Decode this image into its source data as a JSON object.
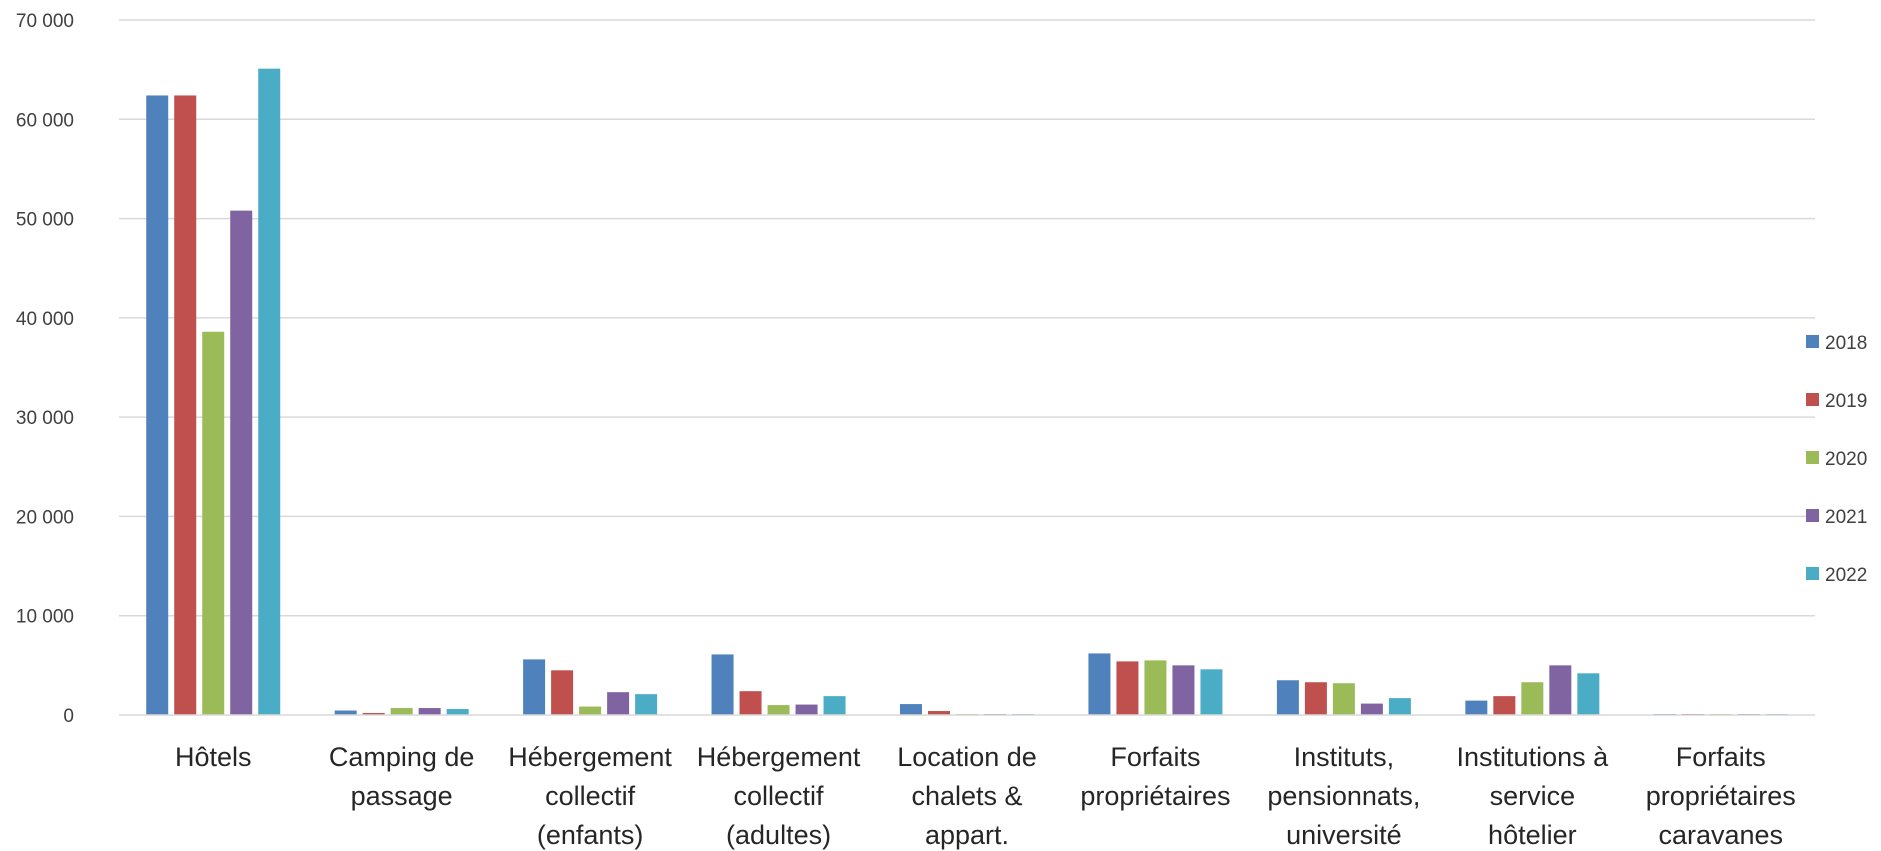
{
  "chart_data": {
    "type": "bar",
    "categories": [
      [
        "Hôtels"
      ],
      [
        "Camping de",
        "passage"
      ],
      [
        "Hébergement",
        "collectif",
        "(enfants)"
      ],
      [
        "Hébergement",
        "collectif",
        "(adultes)"
      ],
      [
        "Location de",
        "chalets &",
        "appart."
      ],
      [
        "Forfaits",
        "propriétaires"
      ],
      [
        "Instituts,",
        "pensionnats,",
        "université"
      ],
      [
        "Institutions à",
        "service",
        "hôtelier"
      ],
      [
        "Forfaits",
        "propriétaires",
        "caravanes"
      ]
    ],
    "series": [
      {
        "name": "2018",
        "color": "#4F81BD",
        "values": [
          62400,
          450,
          5600,
          6100,
          1100,
          6200,
          3500,
          1450,
          80
        ]
      },
      {
        "name": "2019",
        "color": "#C0504D",
        "values": [
          62400,
          200,
          4500,
          2400,
          400,
          5400,
          3300,
          1900,
          80
        ]
      },
      {
        "name": "2020",
        "color": "#9BBB59",
        "values": [
          38600,
          700,
          850,
          1000,
          60,
          5500,
          3200,
          3300,
          80
        ]
      },
      {
        "name": "2021",
        "color": "#8064A2",
        "values": [
          50800,
          700,
          2300,
          1050,
          80,
          5000,
          1150,
          5000,
          80
        ]
      },
      {
        "name": "2022",
        "color": "#4BACC6",
        "values": [
          65100,
          600,
          2100,
          1900,
          80,
          4600,
          1700,
          4200,
          80
        ]
      }
    ],
    "ylim": [
      0,
      70000
    ],
    "yticks": [
      0,
      10000,
      20000,
      30000,
      40000,
      50000,
      60000,
      70000
    ],
    "ytick_labels": [
      "0",
      "10 000",
      "20 000",
      "30 000",
      "40 000",
      "50 000",
      "60 000",
      "70 000"
    ],
    "grid": true,
    "legend_position": "right",
    "title": "",
    "xlabel": "",
    "ylabel": ""
  }
}
